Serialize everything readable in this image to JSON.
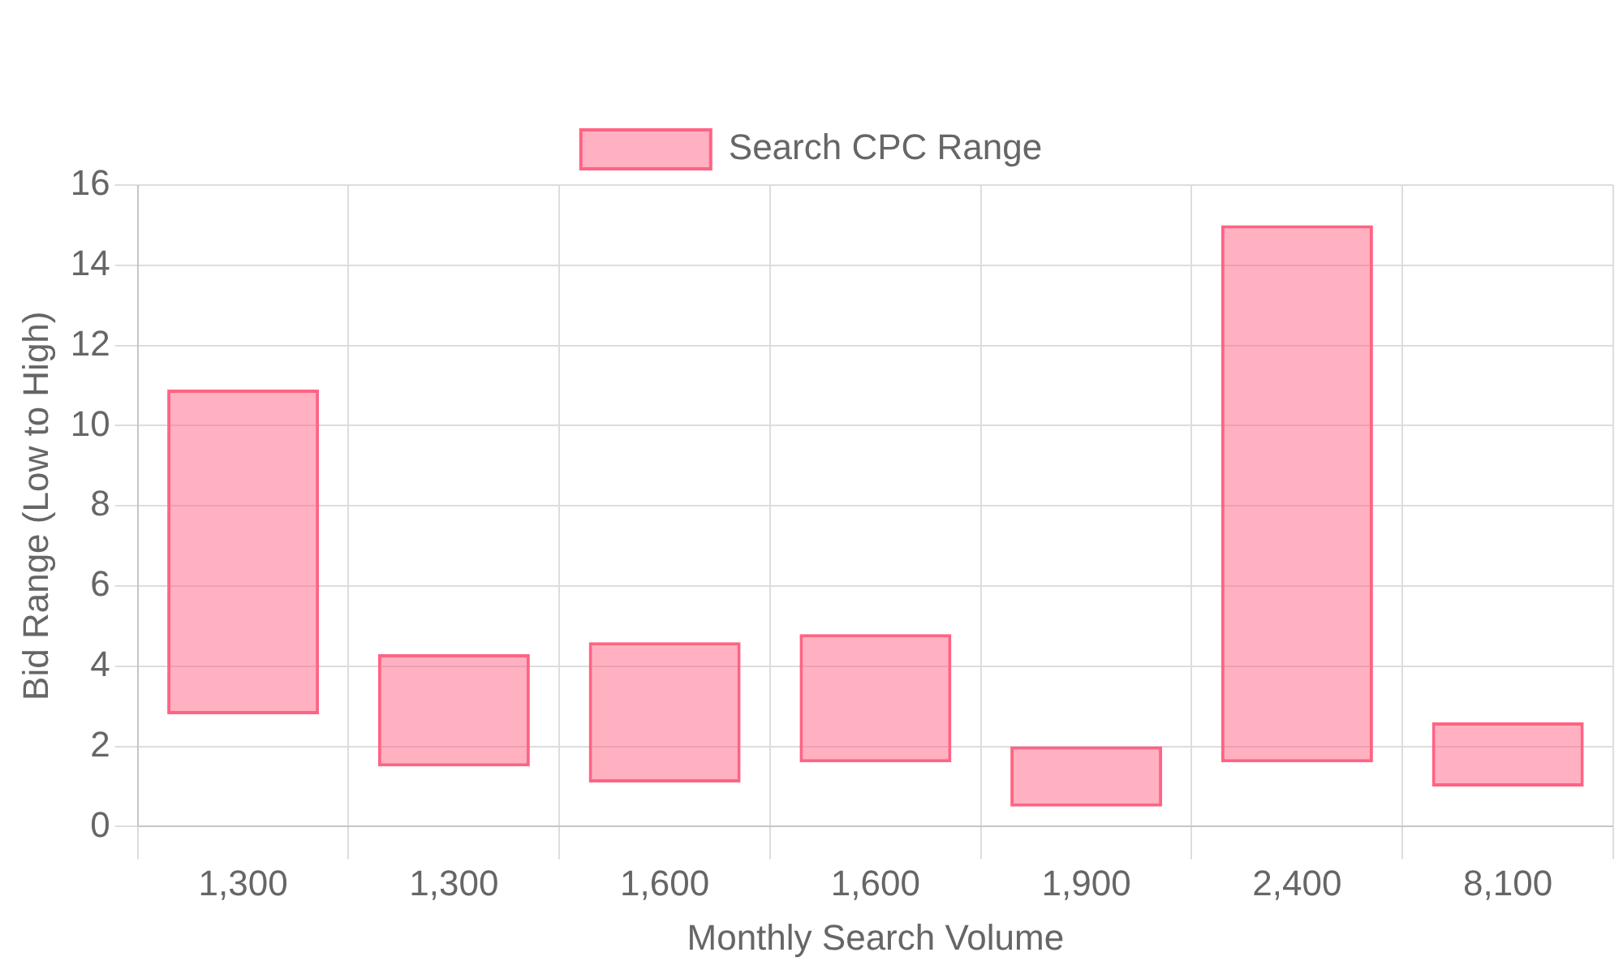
{
  "chart_data": {
    "type": "bar",
    "xlabel": "Monthly Search Volume",
    "ylabel": "Bid Range (Low to High)",
    "categories": [
      "1,300",
      "1,300",
      "1,600",
      "1,600",
      "1,900",
      "2,400",
      "8,100"
    ],
    "series": [
      {
        "name": "Search CPC Range",
        "color": "#ff6384",
        "values": [
          8.1,
          2.8,
          3.5,
          3.2,
          1.5,
          13.4,
          1.6
        ],
        "base": [
          2.8,
          1.5,
          1.1,
          1.6,
          0.5,
          1.6,
          1.0
        ]
      }
    ],
    "ylim": [
      0,
      16
    ],
    "yticks": [
      0,
      2,
      4,
      6,
      8,
      10,
      12,
      14,
      16
    ],
    "grid": true,
    "legend": "top"
  }
}
